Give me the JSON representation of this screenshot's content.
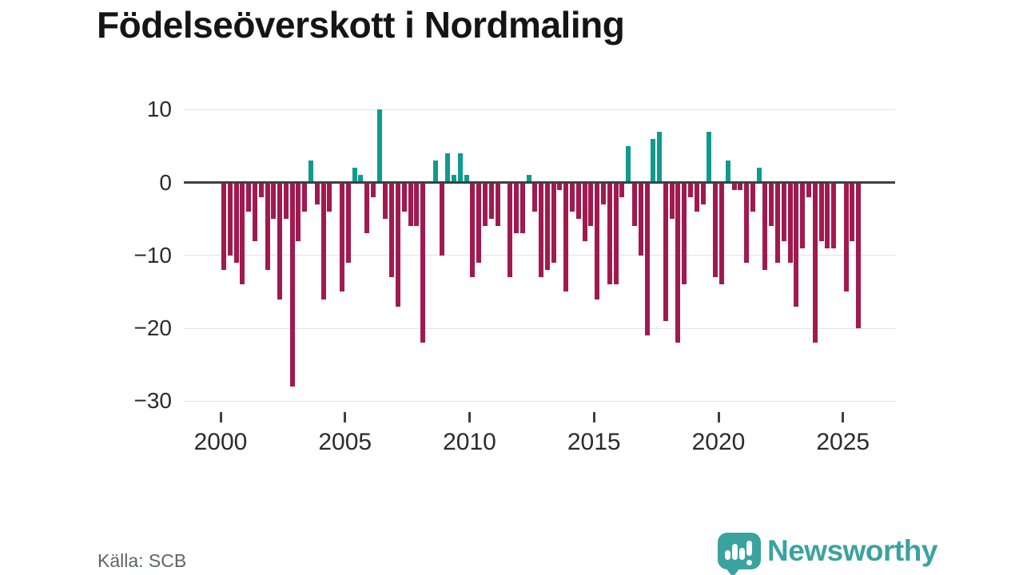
{
  "title": "Födelseöverskott i Nordmaling",
  "source": "Källa: SCB",
  "branding": {
    "logo_text": "Newsworthy",
    "logo_icon": "speech-bubble-bar-chart",
    "logo_color": "#3ba39f"
  },
  "colors": {
    "positive_bar": "#0f9b8e",
    "negative_bar": "#a01a50",
    "axis_line": "#3b4045",
    "gridline": "#e2e2e2",
    "title_text": "#151515",
    "tick_text": "#2b2b2b",
    "source_text": "#5f6368"
  },
  "chart_data": {
    "type": "bar",
    "title": "Födelseöverskott i Nordmaling",
    "xlabel": "",
    "ylabel": "",
    "grid": true,
    "x_tick_years": [
      2000,
      2005,
      2010,
      2015,
      2020,
      2025
    ],
    "y_ticks": [
      10,
      0,
      -10,
      -20,
      -30
    ],
    "ylim": [
      -30.5,
      10.5
    ],
    "quarters": [
      "2000Q1",
      "2000Q2",
      "2000Q3",
      "2000Q4",
      "2001Q1",
      "2001Q2",
      "2001Q3",
      "2001Q4",
      "2002Q1",
      "2002Q2",
      "2002Q3",
      "2002Q4",
      "2003Q1",
      "2003Q2",
      "2003Q3",
      "2003Q4",
      "2004Q1",
      "2004Q2",
      "2004Q3",
      "2004Q4",
      "2005Q1",
      "2005Q2",
      "2005Q3",
      "2005Q4",
      "2006Q1",
      "2006Q2",
      "2006Q3",
      "2006Q4",
      "2007Q1",
      "2007Q2",
      "2007Q3",
      "2007Q4",
      "2008Q1",
      "2008Q2",
      "2008Q3",
      "2008Q4",
      "2009Q1",
      "2009Q2",
      "2009Q3",
      "2009Q4",
      "2010Q1",
      "2010Q2",
      "2010Q3",
      "2010Q4",
      "2011Q1",
      "2011Q2",
      "2011Q3",
      "2011Q4",
      "2012Q1",
      "2012Q2",
      "2012Q3",
      "2012Q4",
      "2013Q1",
      "2013Q2",
      "2013Q3",
      "2013Q4",
      "2014Q1",
      "2014Q2",
      "2014Q3",
      "2014Q4",
      "2015Q1",
      "2015Q2",
      "2015Q3",
      "2015Q4",
      "2016Q1",
      "2016Q2",
      "2016Q3",
      "2016Q4",
      "2017Q1",
      "2017Q2",
      "2017Q3",
      "2017Q4",
      "2018Q1",
      "2018Q2",
      "2018Q3",
      "2018Q4",
      "2019Q1",
      "2019Q2",
      "2019Q3",
      "2019Q4",
      "2020Q1",
      "2020Q2",
      "2020Q3",
      "2020Q4",
      "2021Q1",
      "2021Q2",
      "2021Q3",
      "2021Q4",
      "2022Q1",
      "2022Q2",
      "2022Q3",
      "2022Q4",
      "2023Q1",
      "2023Q2",
      "2023Q3",
      "2023Q4",
      "2024Q1",
      "2024Q2",
      "2024Q3",
      "2024Q4",
      "2025Q1",
      "2025Q2",
      "2025Q3"
    ],
    "values": [
      -12,
      -10,
      -11,
      -14,
      -4,
      -8,
      -2,
      -12,
      -5,
      -16,
      -5,
      -28,
      -8,
      -4,
      3,
      -3,
      -16,
      -4,
      0,
      -15,
      -11,
      2,
      1,
      -7,
      -2,
      10,
      -5,
      -13,
      -17,
      -4,
      -6,
      -6,
      -22,
      0,
      3,
      -10,
      4,
      1,
      4,
      1,
      -13,
      -11,
      -6,
      -5,
      -6,
      0,
      -13,
      -7,
      -7,
      1,
      -4,
      -13,
      -12,
      -11,
      -1,
      -15,
      -4,
      -5,
      -8,
      -6,
      -16,
      -3,
      -14,
      -14,
      -2,
      5,
      -6,
      -10,
      -21,
      6,
      7,
      -19,
      -5,
      -22,
      -14,
      -2,
      -4,
      -3,
      7,
      -13,
      -14,
      3,
      -1,
      -1,
      -11,
      -4,
      2,
      -12,
      -6,
      -11,
      -8,
      -11,
      -17,
      -9,
      -2,
      -22,
      -8,
      -9,
      -9,
      0,
      -15,
      -8,
      -20
    ]
  }
}
